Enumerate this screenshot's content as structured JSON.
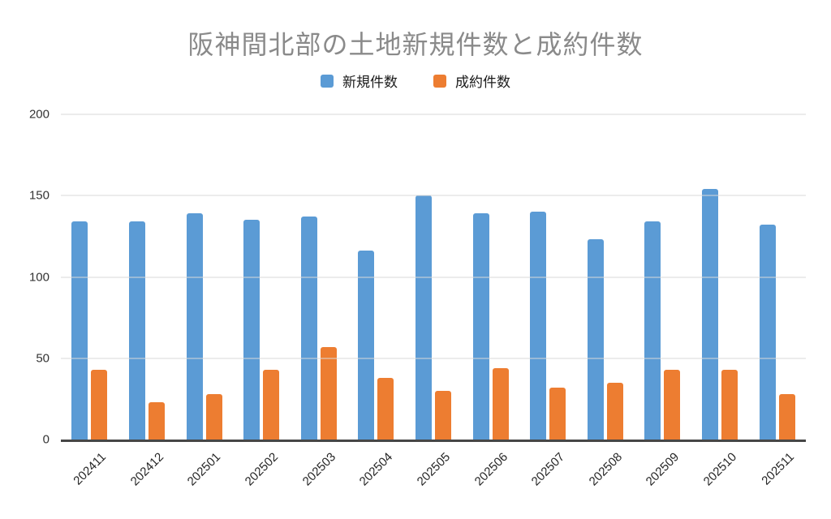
{
  "chart_data": {
    "type": "bar",
    "title": "阪神間北部の土地新規件数と成約件数",
    "categories": [
      "202411",
      "202412",
      "202501",
      "202502",
      "202503",
      "202504",
      "202505",
      "202506",
      "202507",
      "202508",
      "202509",
      "202510",
      "202511"
    ],
    "series": [
      {
        "name": "新規件数",
        "color": "#5B9BD5",
        "values": [
          134,
          134,
          139,
          135,
          137,
          116,
          150,
          139,
          140,
          123,
          134,
          154,
          132
        ]
      },
      {
        "name": "成約件数",
        "color": "#ED7D31",
        "values": [
          43,
          23,
          28,
          43,
          57,
          38,
          30,
          44,
          32,
          35,
          43,
          43,
          28
        ]
      }
    ],
    "xlabel": "",
    "ylabel": "",
    "ylim": [
      0,
      200
    ],
    "yticks": [
      0,
      50,
      100,
      150,
      200
    ],
    "grid": true,
    "legend_position": "top"
  },
  "colors": {
    "background": "#ffffff",
    "title_text": "#8a8a8a",
    "axis_line": "#464646",
    "gridline": "#d9d9d9",
    "ytick_text": "#333333",
    "xtick_text": "#262626",
    "legend_text": "#1a1a1a"
  }
}
